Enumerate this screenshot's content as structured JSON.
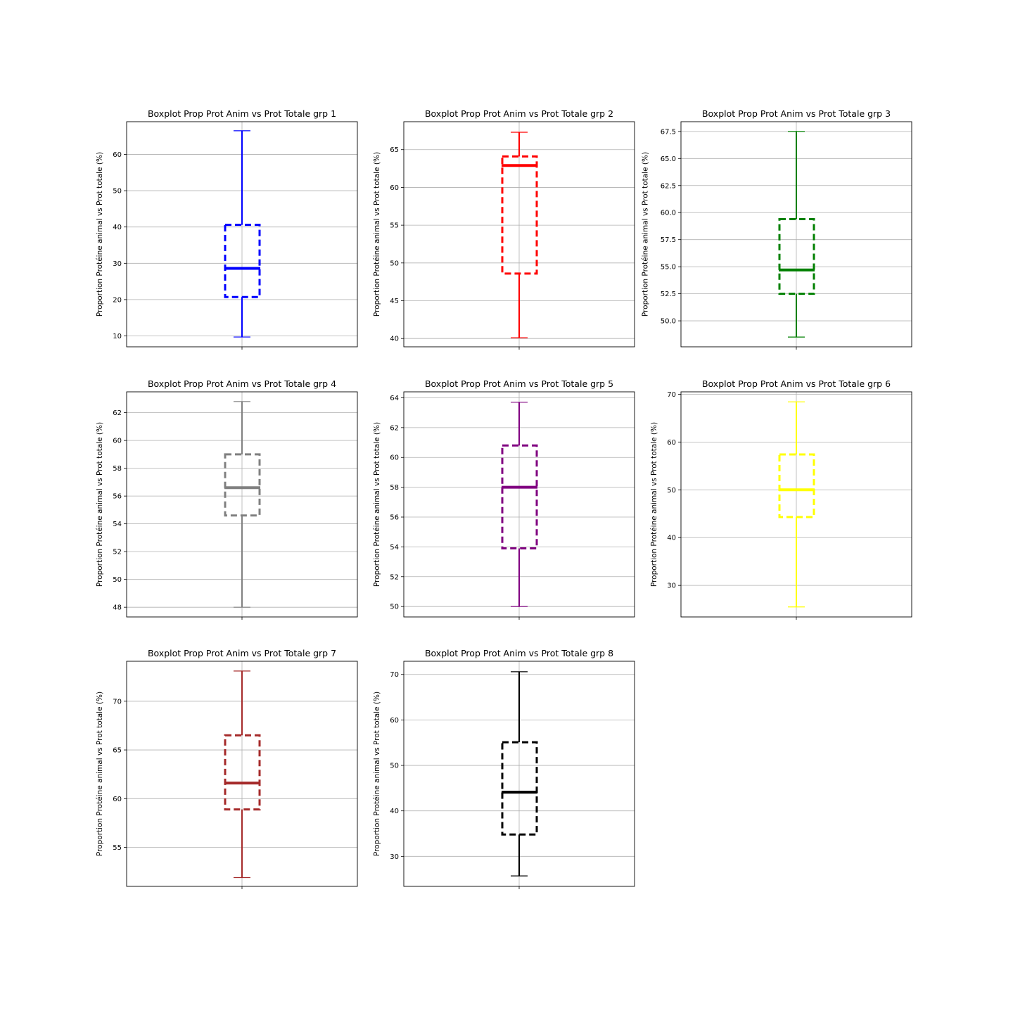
{
  "chart_data": [
    {
      "type": "box",
      "title": "Boxplot Prop Prot Anim vs Prot Totale grp 1",
      "ylabel": "Proportion Protéine animal vs Prot totale (%)",
      "color": "#0000ff",
      "ylim": [
        7,
        69
      ],
      "yticks": [
        10,
        20,
        30,
        40,
        50,
        60
      ],
      "tick_labels": [
        "10",
        "20",
        "30",
        "40",
        "50",
        "60"
      ],
      "whisker_low": 9.7,
      "q1": 20.7,
      "median": 28.6,
      "q3": 40.6,
      "whisker_high": 66.5
    },
    {
      "type": "box",
      "title": "Boxplot Prop Prot Anim vs Prot Totale grp 2",
      "ylabel": "Proportion Protéine animal vs Prot totale (%)",
      "color": "#ff0000",
      "ylim": [
        38.9,
        68.7
      ],
      "yticks": [
        40,
        45,
        50,
        55,
        60,
        65
      ],
      "tick_labels": [
        "40",
        "45",
        "50",
        "55",
        "60",
        "65"
      ],
      "whisker_low": 40.1,
      "q1": 48.6,
      "median": 62.9,
      "q3": 64.1,
      "whisker_high": 67.3
    },
    {
      "type": "box",
      "title": "Boxplot Prop Prot Anim vs Prot Totale grp 3",
      "ylabel": "Proportion Protéine animal vs Prot totale (%)",
      "color": "#008000",
      "ylim": [
        47.6,
        68.4
      ],
      "yticks": [
        50.0,
        52.5,
        55.0,
        57.5,
        60.0,
        62.5,
        65.0,
        67.5
      ],
      "tick_labels": [
        "50.0",
        "52.5",
        "55.0",
        "57.5",
        "60.0",
        "62.5",
        "65.0",
        "67.5"
      ],
      "whisker_low": 48.5,
      "q1": 52.5,
      "median": 54.7,
      "q3": 59.4,
      "whisker_high": 67.5
    },
    {
      "type": "box",
      "title": "Boxplot Prop Prot Anim vs Prot Totale grp 4",
      "ylabel": "Proportion Protéine animal vs Prot totale (%)",
      "color": "#808080",
      "ylim": [
        47.3,
        63.5
      ],
      "yticks": [
        48,
        50,
        52,
        54,
        56,
        58,
        60,
        62
      ],
      "tick_labels": [
        "48",
        "50",
        "52",
        "54",
        "56",
        "58",
        "60",
        "62"
      ],
      "whisker_low": 48.0,
      "q1": 54.6,
      "median": 56.6,
      "q3": 59.0,
      "whisker_high": 62.8
    },
    {
      "type": "box",
      "title": "Boxplot Prop Prot Anim vs Prot Totale grp 5",
      "ylabel": "Proportion Protéine animal vs Prot totale (%)",
      "color": "#800080",
      "ylim": [
        49.3,
        64.4
      ],
      "yticks": [
        50,
        52,
        54,
        56,
        58,
        60,
        62,
        64
      ],
      "tick_labels": [
        "50",
        "52",
        "54",
        "56",
        "58",
        "60",
        "62",
        "64"
      ],
      "whisker_low": 50.0,
      "q1": 53.9,
      "median": 58.0,
      "q3": 60.8,
      "whisker_high": 63.7
    },
    {
      "type": "box",
      "title": "Boxplot Prop Prot Anim vs Prot Totale grp 6",
      "ylabel": "Proportion Protéine animal vs Prot totale (%)",
      "color": "#ffff00",
      "ylim": [
        23.4,
        70.5
      ],
      "yticks": [
        30,
        40,
        50,
        60,
        70
      ],
      "tick_labels": [
        "30",
        "40",
        "50",
        "60",
        "70"
      ],
      "whisker_low": 25.5,
      "q1": 44.3,
      "median": 50.0,
      "q3": 57.4,
      "whisker_high": 68.4
    },
    {
      "type": "box",
      "title": "Boxplot Prop Prot Anim vs Prot Totale grp 7",
      "ylabel": "Proportion Protéine animal vs Prot totale (%)",
      "color": "#a52a2a",
      "ylim": [
        51.0,
        74.1
      ],
      "yticks": [
        55,
        60,
        65,
        70
      ],
      "tick_labels": [
        "55",
        "60",
        "65",
        "70"
      ],
      "whisker_low": 51.9,
      "q1": 58.9,
      "median": 61.6,
      "q3": 66.5,
      "whisker_high": 73.1
    },
    {
      "type": "box",
      "title": "Boxplot Prop Prot Anim vs Prot Totale grp 8",
      "ylabel": "Proportion Protéine animal vs Prot totale (%)",
      "color": "#000000",
      "ylim": [
        23.4,
        72.9
      ],
      "yticks": [
        30,
        40,
        50,
        60,
        70
      ],
      "tick_labels": [
        "30",
        "40",
        "50",
        "60",
        "70"
      ],
      "whisker_low": 25.7,
      "q1": 34.8,
      "median": 44.1,
      "q3": 55.1,
      "whisker_high": 70.6
    }
  ]
}
